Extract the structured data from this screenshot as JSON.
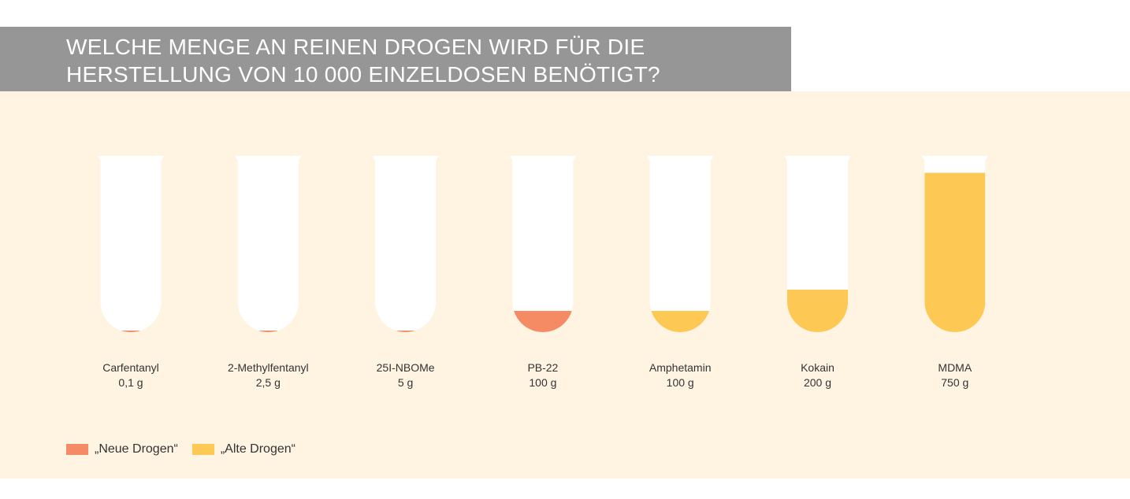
{
  "title": {
    "line1": "WELCHE MENGE AN REINEN DROGEN WIRD FÜR DIE",
    "line2": "HERSTELLUNG VON 10 000 EINZELDOSEN BENÖTIGT?"
  },
  "colors": {
    "neu": "#f48b65",
    "alt": "#fdc854",
    "tube": "#ffffff",
    "background": "#fff4e2",
    "title_bar": "#969696"
  },
  "legend": {
    "neu": "„Neue Drogen“",
    "alt": "„Alte Drogen“"
  },
  "chart_data": {
    "type": "bar",
    "categories": [
      "Carfentanyl",
      "2-Methylfentanyl",
      "25I-NBOMe",
      "PB-22",
      "Amphetamin",
      "Kokain",
      "MDMA"
    ],
    "value_labels": [
      "0,1 g",
      "2,5 g",
      "5 g",
      "100 g",
      "100 g",
      "200 g",
      "750 g"
    ],
    "values": [
      0.1,
      2.5,
      5,
      100,
      100,
      200,
      750
    ],
    "groups": [
      "neu",
      "neu",
      "neu",
      "neu",
      "alt",
      "alt",
      "alt"
    ],
    "unit": "g",
    "ylim": [
      0,
      815
    ],
    "grid": false,
    "legend_position": "bottom-left"
  }
}
